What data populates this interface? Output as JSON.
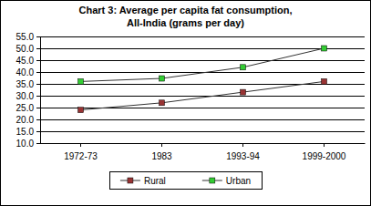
{
  "chart_data": {
    "type": "line",
    "title": "Chart 3: Average per capita fat consumption,\nAll-India (grams per day)",
    "categories": [
      "1972-73",
      "1983",
      "1993-94",
      "1999-2000"
    ],
    "series": [
      {
        "name": "Rural",
        "color": "#993333",
        "marker": "square",
        "line_style": "solid",
        "values": [
          24.0,
          27.0,
          31.5,
          36.0
        ]
      },
      {
        "name": "Urban",
        "color": "#33cc33",
        "marker": "square",
        "line_style": "solid",
        "values": [
          36.0,
          37.3,
          42.0,
          50.0
        ]
      }
    ],
    "ylim": [
      10,
      55
    ],
    "yticks": [
      {
        "value": 10,
        "label": "10.0"
      },
      {
        "value": 15,
        "label": "15.0"
      },
      {
        "value": 20,
        "label": "20.0"
      },
      {
        "value": 25,
        "label": "25.0"
      },
      {
        "value": 30,
        "label": "30.0"
      },
      {
        "value": 35,
        "label": "35.0"
      },
      {
        "value": 40,
        "label": "40.0"
      },
      {
        "value": 45,
        "label": "45.0"
      },
      {
        "value": 50,
        "label": "50.0"
      },
      {
        "value": 55,
        "label": "55.0"
      }
    ],
    "grid": true,
    "legend": "bottom"
  }
}
